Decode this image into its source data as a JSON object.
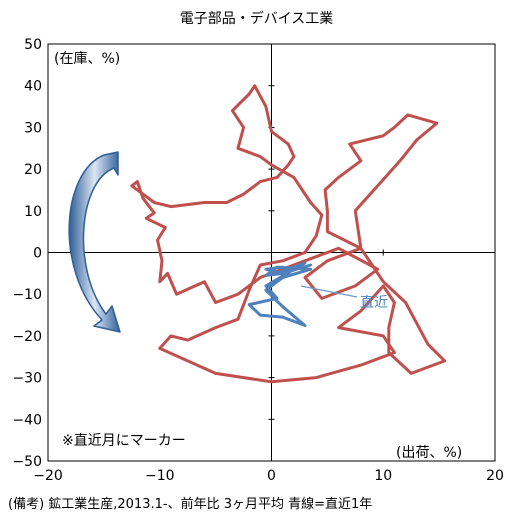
{
  "chart_data": {
    "type": "line",
    "title": "電子部品・デバイス工業",
    "caption": "(備考) 鉱工業生産,2013.1-、前年比 3ヶ月平均 青線=直近1年",
    "y_unit_label": "(在庫、%)",
    "x_unit_label": "(出荷、%)",
    "marker_note": "※直近月にマーカー",
    "recent_label": "直近",
    "xlim": [
      -20,
      20
    ],
    "ylim": [
      -50,
      50
    ],
    "x_ticks": [
      "−20",
      "−10",
      "0",
      "10",
      "20"
    ],
    "y_ticks": [
      "50",
      "40",
      "30",
      "20",
      "10",
      "0",
      "−10",
      "−20",
      "−30",
      "−40",
      "−50"
    ],
    "grid": false,
    "colors": {
      "main": "#c0504d",
      "recent": "#4f81bd",
      "arrow": "#2f5f98"
    },
    "series": [
      {
        "points": [
          [
            -12.0,
            17.0
          ],
          [
            -11.5,
            13.0
          ],
          [
            -10.5,
            9.5
          ],
          [
            -11.2,
            8.2
          ],
          [
            -9.5,
            6.0
          ],
          [
            -10.2,
            3.0
          ],
          [
            -9.8,
            -2.0
          ],
          [
            -10.0,
            -7.0
          ],
          [
            -9.3,
            -5.0
          ],
          [
            -8.5,
            -10.0
          ],
          [
            -6.0,
            -7.0
          ],
          [
            -5.0,
            -12.0
          ],
          [
            -3.0,
            -10.0
          ],
          [
            -1.0,
            -6.0
          ],
          [
            1.0,
            -4.0
          ],
          [
            3.0,
            -2.0
          ],
          [
            6.0,
            1.0
          ],
          [
            9.5,
            -4.0
          ],
          [
            7.5,
            -8.0
          ],
          [
            4.5,
            -11.0
          ],
          [
            3.0,
            -6.0
          ],
          [
            5.0,
            -2.0
          ],
          [
            8.0,
            1.0
          ],
          [
            5.0,
            5.0
          ],
          [
            5.0,
            10.0
          ],
          [
            4.8,
            15.0
          ],
          [
            6.0,
            18.0
          ],
          [
            8.0,
            22.0
          ],
          [
            7.0,
            26.0
          ],
          [
            10.0,
            28.0
          ],
          [
            11.0,
            30.0
          ],
          [
            12.2,
            33.0
          ],
          [
            14.8,
            31.0
          ],
          [
            13.0,
            27.0
          ],
          [
            11.5,
            22.0
          ],
          [
            9.5,
            16.0
          ],
          [
            7.5,
            10.0
          ],
          [
            8.0,
            1.0
          ],
          [
            9.0,
            -3.0
          ],
          [
            10.0,
            -7.0
          ],
          [
            12.0,
            -12.0
          ],
          [
            13.0,
            -17.0
          ],
          [
            14.0,
            -22.0
          ],
          [
            15.5,
            -26.0
          ],
          [
            12.5,
            -29.0
          ],
          [
            10.5,
            -24.0
          ],
          [
            10.5,
            -18.0
          ],
          [
            11.0,
            -12.0
          ],
          [
            10.0,
            -8.0
          ],
          [
            8.0,
            -14.0
          ],
          [
            6.0,
            -18.0
          ],
          [
            10.0,
            -20.0
          ],
          [
            11.0,
            -24.0
          ],
          [
            8.0,
            -27.0
          ],
          [
            4.0,
            -30.0
          ],
          [
            0.0,
            -31.0
          ],
          [
            -5.0,
            -29.0
          ],
          [
            -10.0,
            -23.0
          ],
          [
            -9.0,
            -20.0
          ],
          [
            -7.5,
            -21.0
          ],
          [
            -5.0,
            -18.0
          ],
          [
            -3.0,
            -16.0
          ],
          [
            -2.0,
            -9.0
          ],
          [
            -1.0,
            -3.0
          ],
          [
            1.0,
            -2.0
          ],
          [
            3.0,
            0.0
          ],
          [
            4.0,
            4.0
          ],
          [
            4.5,
            9.0
          ],
          [
            3.5,
            12.0
          ],
          [
            2.0,
            18.0
          ],
          [
            0.0,
            21.0
          ],
          [
            -1.0,
            23.0
          ],
          [
            -3.0,
            25.0
          ],
          [
            -2.5,
            30.0
          ],
          [
            -3.5,
            34.0
          ],
          [
            -2.0,
            38.0
          ],
          [
            -1.5,
            40.0
          ],
          [
            -0.5,
            35.0
          ],
          [
            0.0,
            29.0
          ],
          [
            1.5,
            26.0
          ],
          [
            2.0,
            23.0
          ],
          [
            1.5,
            21.0
          ],
          [
            0.5,
            18.0
          ],
          [
            -1.0,
            17.0
          ],
          [
            -2.5,
            14.0
          ],
          [
            -4.0,
            12.0
          ],
          [
            -6.0,
            12.0
          ],
          [
            -9.0,
            11.0
          ],
          [
            -10.5,
            12.0
          ],
          [
            -12.5,
            16.0
          ],
          [
            -12.0,
            17.0
          ]
        ]
      },
      {
        "points": [
          [
            0.5,
            -5.0
          ],
          [
            3.0,
            -2.5
          ],
          [
            -0.5,
            -8.0
          ],
          [
            0.5,
            -11.0
          ],
          [
            -2.0,
            -12.5
          ],
          [
            -1.0,
            -15.0
          ],
          [
            1.0,
            -15.5
          ],
          [
            3.0,
            -17.5
          ],
          [
            1.0,
            -13.0
          ],
          [
            -0.5,
            -9.0
          ],
          [
            1.0,
            -6.0
          ],
          [
            3.5,
            -4.0
          ],
          [
            0.5,
            -3.5
          ],
          [
            -0.5,
            -5.5
          ],
          [
            1.0,
            -5.0
          ],
          [
            3.5,
            -3.0
          ],
          [
            1.0,
            -5.0
          ],
          [
            -0.5,
            -4.0
          ],
          [
            1.0,
            -3.5
          ],
          [
            1.5,
            -4.0
          ],
          [
            1.2,
            -4.4
          ],
          [
            1.5,
            -4.3
          ]
        ]
      }
    ]
  }
}
